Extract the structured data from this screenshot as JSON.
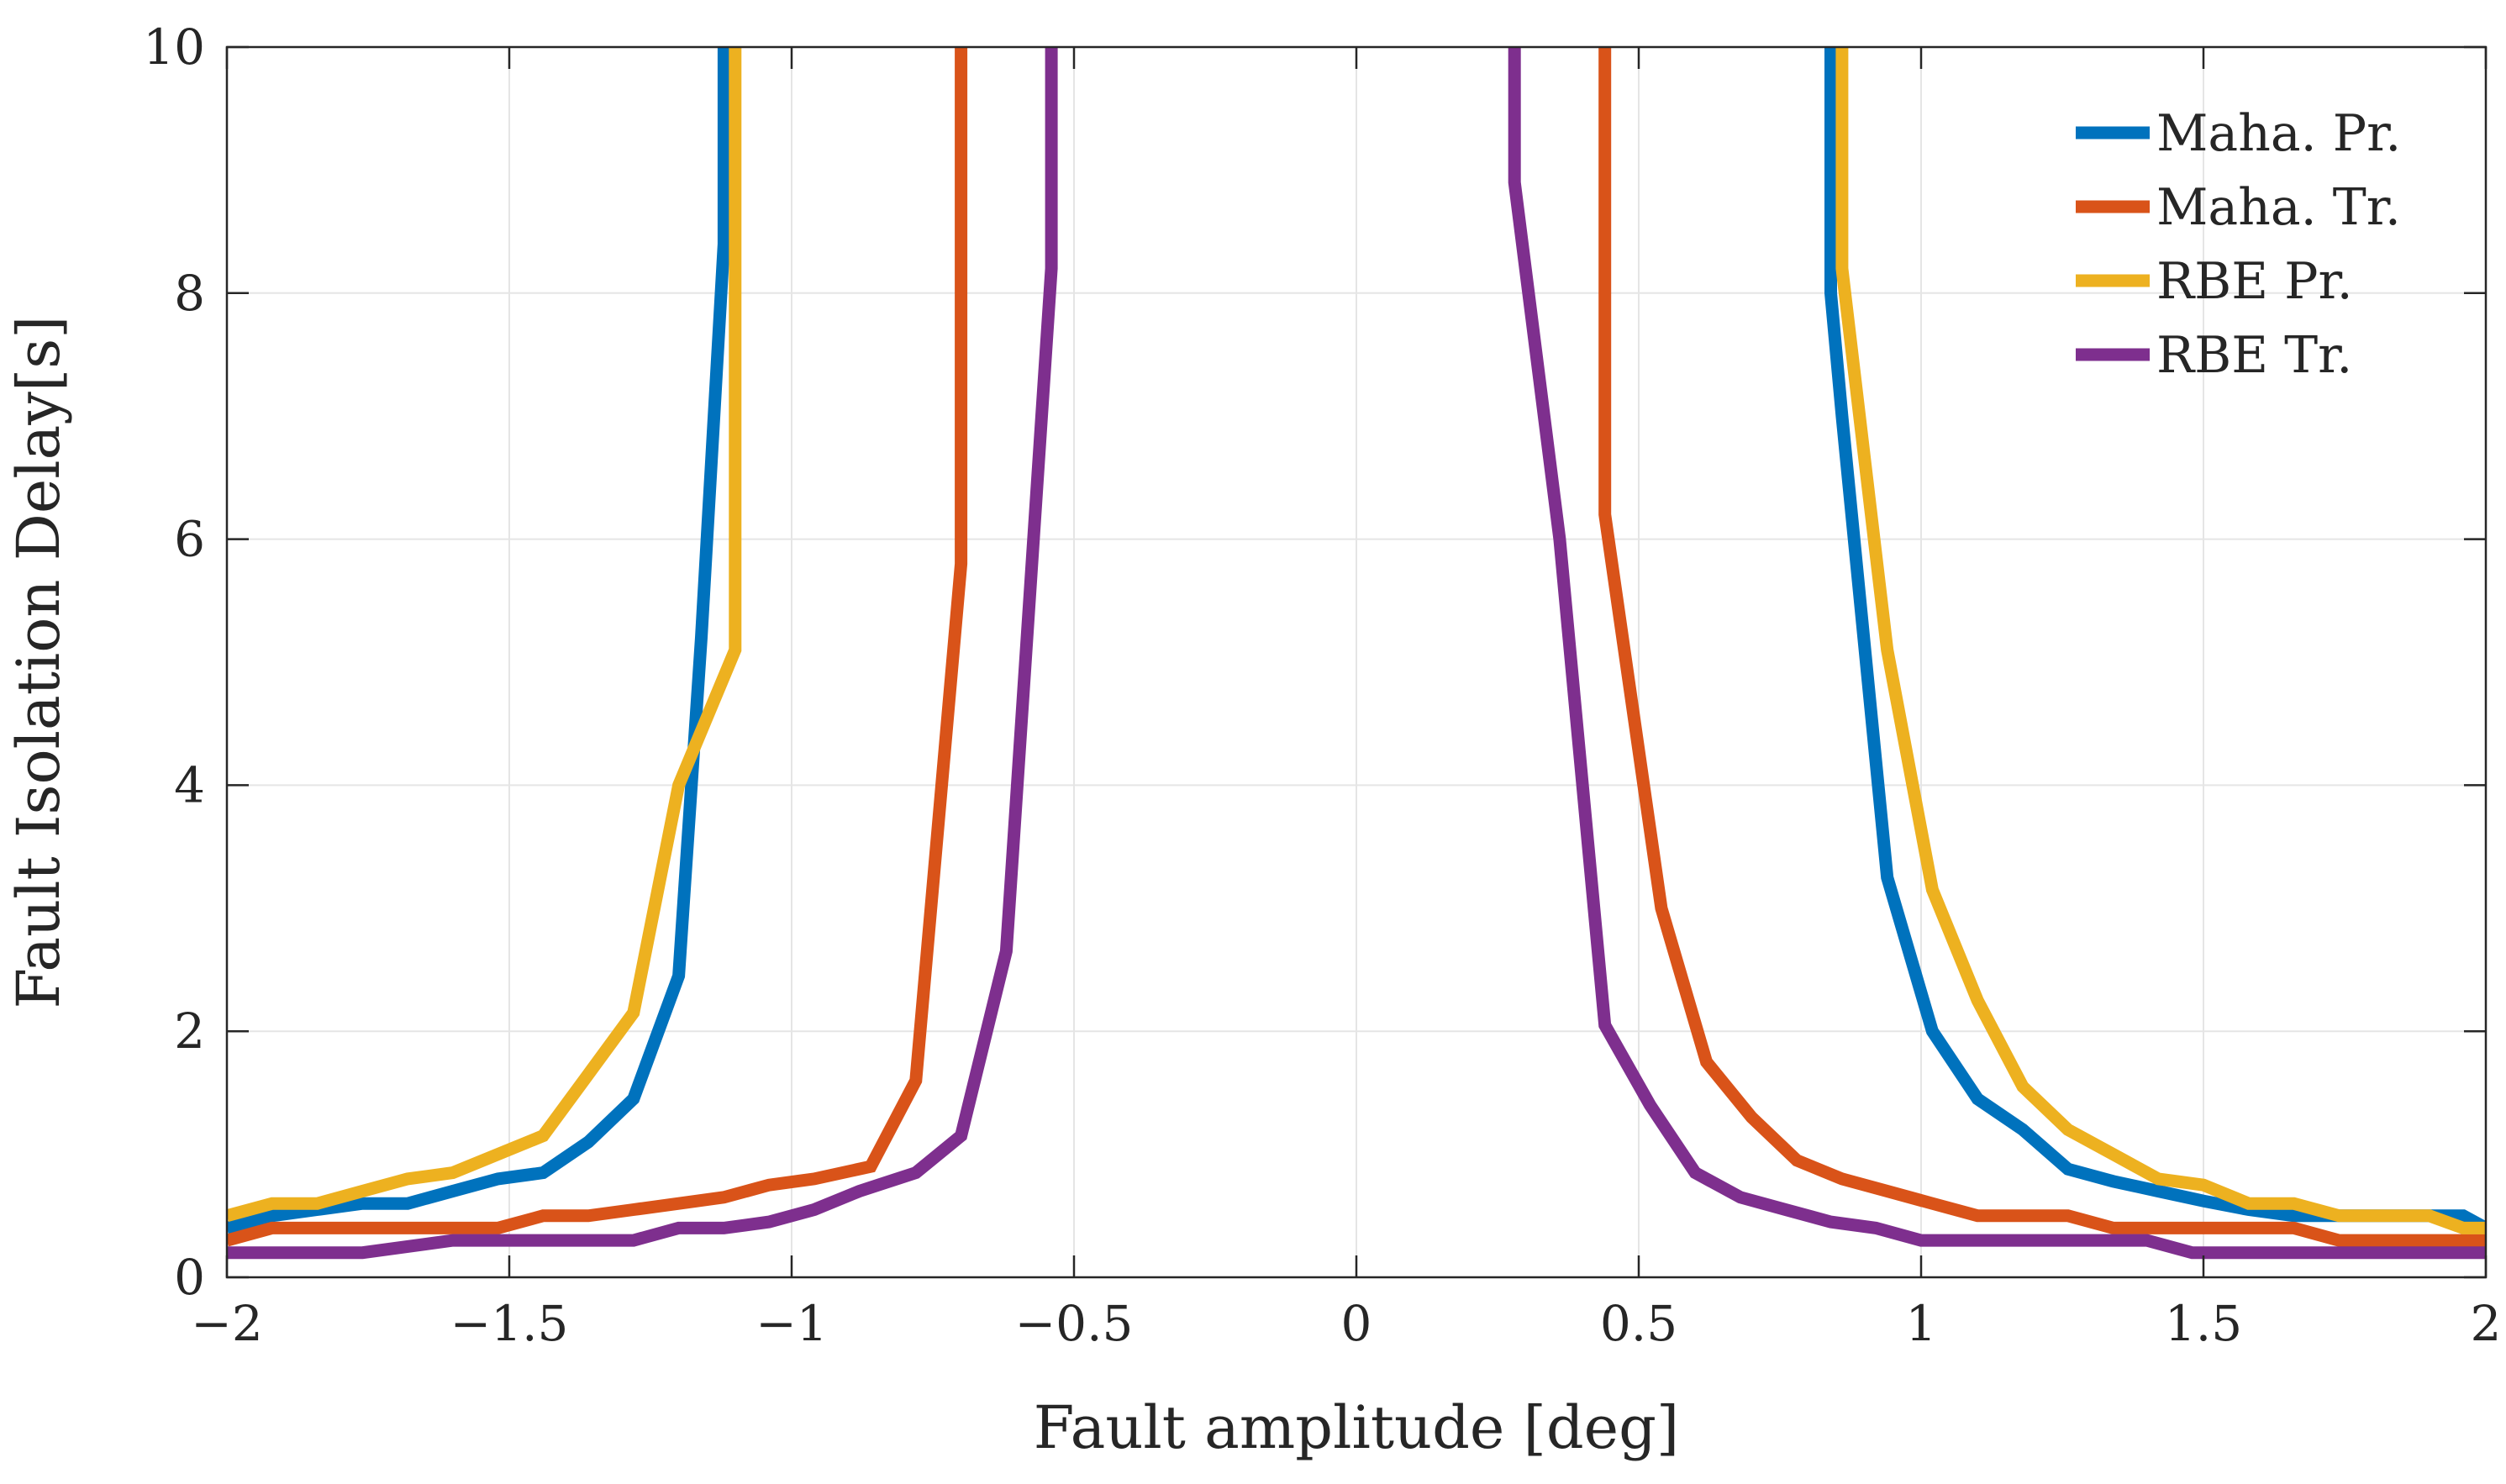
{
  "chart_data": {
    "type": "line",
    "title": "",
    "xlabel": "Fault amplitude [deg]",
    "ylabel": "Fault Isolation Delay[s]",
    "xlim": [
      -2,
      2
    ],
    "ylim": [
      0,
      10
    ],
    "xticks": [
      -2,
      -1.5,
      -1,
      -0.5,
      0,
      0.5,
      1,
      1.5,
      2
    ],
    "xtick_labels": [
      "−2",
      "−1.5",
      "−1",
      "−0.5",
      "0",
      "0.5",
      "1",
      "1.5",
      "2"
    ],
    "yticks": [
      0,
      2,
      4,
      6,
      8,
      10
    ],
    "ytick_labels": [
      "0",
      "2",
      "4",
      "6",
      "8",
      "10"
    ],
    "grid": true,
    "legend_position": "top-right",
    "series": [
      {
        "name": "Maha. Pr.",
        "color": "#0072BD",
        "segments": [
          [
            [
              -2,
              0.4
            ],
            [
              -1.92,
              0.5
            ],
            [
              -1.84,
              0.55
            ],
            [
              -1.76,
              0.6
            ],
            [
              -1.68,
              0.6
            ],
            [
              -1.6,
              0.7
            ],
            [
              -1.52,
              0.8
            ],
            [
              -1.44,
              0.85
            ],
            [
              -1.36,
              1.1
            ],
            [
              -1.28,
              1.45
            ],
            [
              -1.2,
              2.45
            ],
            [
              -1.16,
              5.2
            ],
            [
              -1.12,
              8.4
            ],
            [
              -1.12,
              10
            ]
          ],
          [
            [
              0.84,
              10
            ],
            [
              0.84,
              8.0
            ],
            [
              0.86,
              7.0
            ],
            [
              0.94,
              3.25
            ],
            [
              1.02,
              2.0
            ],
            [
              1.1,
              1.45
            ],
            [
              1.18,
              1.2
            ],
            [
              1.26,
              0.88
            ],
            [
              1.34,
              0.78
            ],
            [
              1.42,
              0.7
            ],
            [
              1.5,
              0.62
            ],
            [
              1.58,
              0.55
            ],
            [
              1.66,
              0.5
            ],
            [
              1.74,
              0.5
            ],
            [
              1.82,
              0.5
            ],
            [
              1.9,
              0.5
            ],
            [
              1.96,
              0.5
            ],
            [
              2.0,
              0.4
            ]
          ]
        ]
      },
      {
        "name": "Maha. Tr.",
        "color": "#D95319",
        "segments": [
          [
            [
              -2,
              0.3
            ],
            [
              -1.92,
              0.4
            ],
            [
              -1.84,
              0.4
            ],
            [
              -1.76,
              0.4
            ],
            [
              -1.68,
              0.4
            ],
            [
              -1.6,
              0.4
            ],
            [
              -1.52,
              0.4
            ],
            [
              -1.44,
              0.5
            ],
            [
              -1.36,
              0.5
            ],
            [
              -1.28,
              0.55
            ],
            [
              -1.2,
              0.6
            ],
            [
              -1.12,
              0.65
            ],
            [
              -1.04,
              0.75
            ],
            [
              -0.96,
              0.8
            ],
            [
              -0.86,
              0.9
            ],
            [
              -0.78,
              1.6
            ],
            [
              -0.7,
              5.8
            ],
            [
              -0.7,
              10
            ]
          ],
          [
            [
              0.44,
              10
            ],
            [
              0.44,
              6.2
            ],
            [
              0.54,
              3.0
            ],
            [
              0.62,
              1.75
            ],
            [
              0.7,
              1.3
            ],
            [
              0.78,
              0.95
            ],
            [
              0.86,
              0.8
            ],
            [
              0.94,
              0.7
            ],
            [
              1.02,
              0.6
            ],
            [
              1.1,
              0.5
            ],
            [
              1.18,
              0.5
            ],
            [
              1.26,
              0.5
            ],
            [
              1.34,
              0.4
            ],
            [
              1.42,
              0.4
            ],
            [
              1.5,
              0.4
            ],
            [
              1.58,
              0.4
            ],
            [
              1.66,
              0.4
            ],
            [
              1.74,
              0.3
            ],
            [
              1.82,
              0.3
            ],
            [
              1.9,
              0.3
            ],
            [
              2.0,
              0.3
            ]
          ]
        ]
      },
      {
        "name": "RBE Pr.",
        "color": "#EDB120",
        "segments": [
          [
            [
              -2,
              0.5
            ],
            [
              -1.92,
              0.6
            ],
            [
              -1.84,
              0.6
            ],
            [
              -1.76,
              0.7
            ],
            [
              -1.68,
              0.8
            ],
            [
              -1.6,
              0.85
            ],
            [
              -1.52,
              1.0
            ],
            [
              -1.44,
              1.15
            ],
            [
              -1.36,
              1.65
            ],
            [
              -1.28,
              2.15
            ],
            [
              -1.2,
              4.0
            ],
            [
              -1.1,
              5.1
            ],
            [
              -1.1,
              10
            ]
          ],
          [
            [
              0.86,
              10
            ],
            [
              0.86,
              8.2
            ],
            [
              0.94,
              5.1
            ],
            [
              1.02,
              3.15
            ],
            [
              1.1,
              2.25
            ],
            [
              1.18,
              1.55
            ],
            [
              1.26,
              1.2
            ],
            [
              1.34,
              1.0
            ],
            [
              1.42,
              0.8
            ],
            [
              1.5,
              0.75
            ],
            [
              1.58,
              0.6
            ],
            [
              1.66,
              0.6
            ],
            [
              1.74,
              0.5
            ],
            [
              1.82,
              0.5
            ],
            [
              1.9,
              0.5
            ],
            [
              1.96,
              0.4
            ],
            [
              2.0,
              0.4
            ]
          ]
        ]
      },
      {
        "name": "RBE Tr.",
        "color": "#7E2F8E",
        "segments": [
          [
            [
              -2,
              0.2
            ],
            [
              -1.92,
              0.2
            ],
            [
              -1.84,
              0.2
            ],
            [
              -1.76,
              0.2
            ],
            [
              -1.68,
              0.25
            ],
            [
              -1.6,
              0.3
            ],
            [
              -1.52,
              0.3
            ],
            [
              -1.44,
              0.3
            ],
            [
              -1.36,
              0.3
            ],
            [
              -1.28,
              0.3
            ],
            [
              -1.2,
              0.4
            ],
            [
              -1.12,
              0.4
            ],
            [
              -1.04,
              0.45
            ],
            [
              -0.96,
              0.55
            ],
            [
              -0.88,
              0.7
            ],
            [
              -0.78,
              0.85
            ],
            [
              -0.7,
              1.15
            ],
            [
              -0.62,
              2.65
            ],
            [
              -0.54,
              8.2
            ],
            [
              -0.54,
              10
            ]
          ],
          [
            [
              0.28,
              10
            ],
            [
              0.28,
              8.9
            ],
            [
              0.36,
              6.0
            ],
            [
              0.44,
              2.05
            ],
            [
              0.52,
              1.4
            ],
            [
              0.6,
              0.85
            ],
            [
              0.68,
              0.65
            ],
            [
              0.76,
              0.55
            ],
            [
              0.84,
              0.45
            ],
            [
              0.92,
              0.4
            ],
            [
              1.0,
              0.3
            ],
            [
              1.08,
              0.3
            ],
            [
              1.16,
              0.3
            ],
            [
              1.24,
              0.3
            ],
            [
              1.32,
              0.3
            ],
            [
              1.4,
              0.3
            ],
            [
              1.48,
              0.2
            ],
            [
              1.56,
              0.2
            ],
            [
              1.64,
              0.2
            ],
            [
              1.72,
              0.2
            ],
            [
              1.8,
              0.2
            ],
            [
              1.88,
              0.2
            ],
            [
              2.0,
              0.2
            ]
          ]
        ]
      }
    ]
  }
}
